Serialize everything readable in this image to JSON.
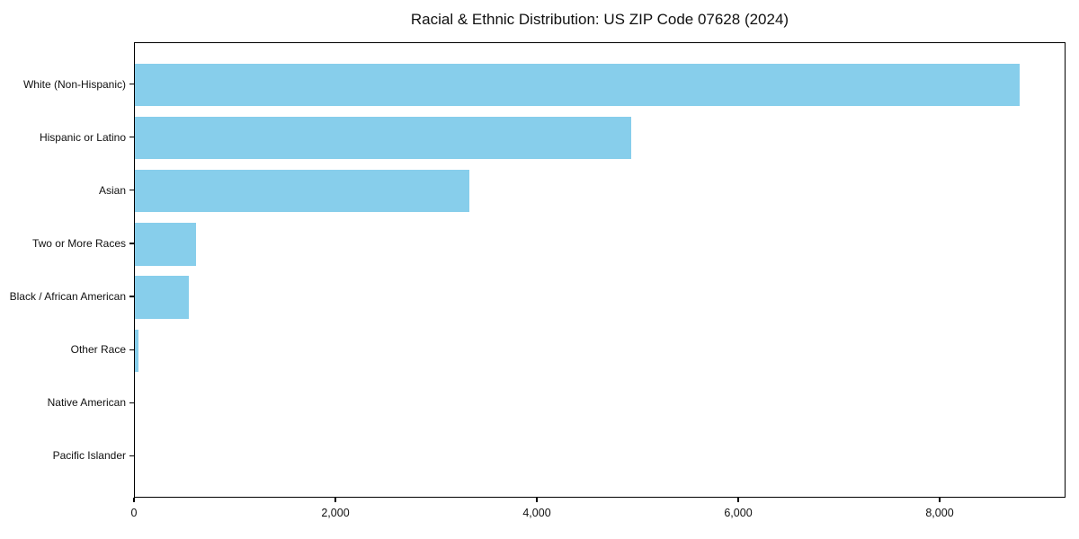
{
  "header": {
    "title": "Racial & Ethnic Distribution: US ZIP Code 07628 (2024)"
  },
  "chart_data": {
    "type": "bar",
    "orientation": "horizontal",
    "title": "Racial & Ethnic Distribution: US ZIP Code 07628 (2024)",
    "categories": [
      "White (Non-Hispanic)",
      "Hispanic or Latino",
      "Asian",
      "Two or More Races",
      "Black / African American",
      "Other Race",
      "Native American",
      "Pacific Islander"
    ],
    "values": [
      8810,
      4940,
      3330,
      610,
      540,
      40,
      0,
      0
    ],
    "xlabel": "",
    "ylabel": "",
    "xlim": [
      0,
      9250
    ],
    "xticks": [
      0,
      2000,
      4000,
      6000,
      8000
    ],
    "xtick_labels": [
      "0",
      "2,000",
      "4,000",
      "6,000",
      "8,000"
    ],
    "bar_color": "#87CEEB",
    "frame_color": "#000000",
    "background": "#FFFFFF",
    "grid": false,
    "legend": null
  }
}
